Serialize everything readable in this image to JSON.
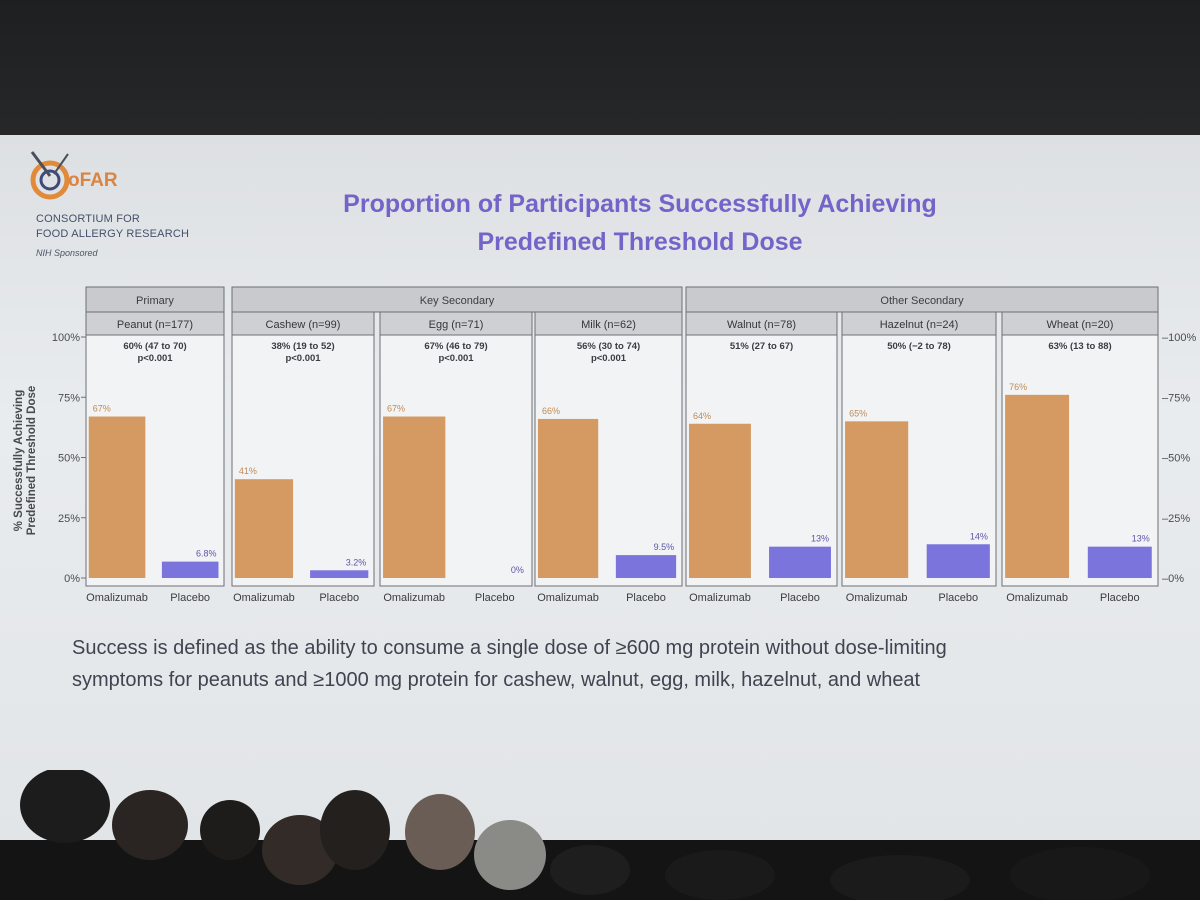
{
  "slide": {
    "logo_text": "oFAR",
    "org_line1": "CONSORTIUM FOR",
    "org_line2": "FOOD ALLERGY RESEARCH",
    "sponsor": "NIH Sponsored",
    "title_line1": "Proportion of Participants Successfully Achieving",
    "title_line2": "Predefined Threshold Dose",
    "footnote_line1": "Success is defined as the ability to consume a single dose of ≥600 mg protein without dose-limiting",
    "footnote_line2": "symptoms for peanuts and ≥1000 mg protein for cashew, walnut, egg, milk, hazelnut, and wheat"
  },
  "colors": {
    "omalizumab": "#d49a62",
    "placebo": "#7b74dc",
    "title": "#7264c8"
  },
  "chart_data": {
    "type": "bar",
    "ylabel_line1": "% Successfully Achieving",
    "ylabel_line2": "Predefined Threshold Dose",
    "ylim": [
      0,
      100
    ],
    "yticks": [
      "0%",
      "25%",
      "50%",
      "75%",
      "100%"
    ],
    "grid": false,
    "categories": [
      "Omalizumab",
      "Placebo"
    ],
    "groups": [
      {
        "name": "Primary",
        "panels": [
          0
        ]
      },
      {
        "name": "Key Secondary",
        "panels": [
          1,
          2,
          3
        ]
      },
      {
        "name": "Other Secondary",
        "panels": [
          4,
          5,
          6
        ]
      }
    ],
    "panels": [
      {
        "label": "Peanut (n=177)",
        "diff": "60% (47 to 70)",
        "p": "p<0.001",
        "values": [
          67,
          6.8
        ],
        "labels": [
          "67%",
          "6.8%"
        ]
      },
      {
        "label": "Cashew (n=99)",
        "diff": "38% (19 to 52)",
        "p": "p<0.001",
        "values": [
          41,
          3.2
        ],
        "labels": [
          "41%",
          "3.2%"
        ]
      },
      {
        "label": "Egg (n=71)",
        "diff": "67% (46 to 79)",
        "p": "p<0.001",
        "values": [
          67,
          0
        ],
        "labels": [
          "67%",
          "0%"
        ]
      },
      {
        "label": "Milk (n=62)",
        "diff": "56% (30 to 74)",
        "p": "p<0.001",
        "values": [
          66,
          9.5
        ],
        "labels": [
          "66%",
          "9.5%"
        ]
      },
      {
        "label": "Walnut (n=78)",
        "diff": "51% (27 to 67)",
        "p": "",
        "values": [
          64,
          13
        ],
        "labels": [
          "64%",
          "13%"
        ]
      },
      {
        "label": "Hazelnut (n=24)",
        "diff": "50% (−2 to 78)",
        "p": "",
        "values": [
          65,
          14
        ],
        "labels": [
          "65%",
          "14%"
        ]
      },
      {
        "label": "Wheat (n=20)",
        "diff": "63% (13 to 88)",
        "p": "",
        "values": [
          76,
          13
        ],
        "labels": [
          "76%",
          "13%"
        ]
      }
    ]
  }
}
